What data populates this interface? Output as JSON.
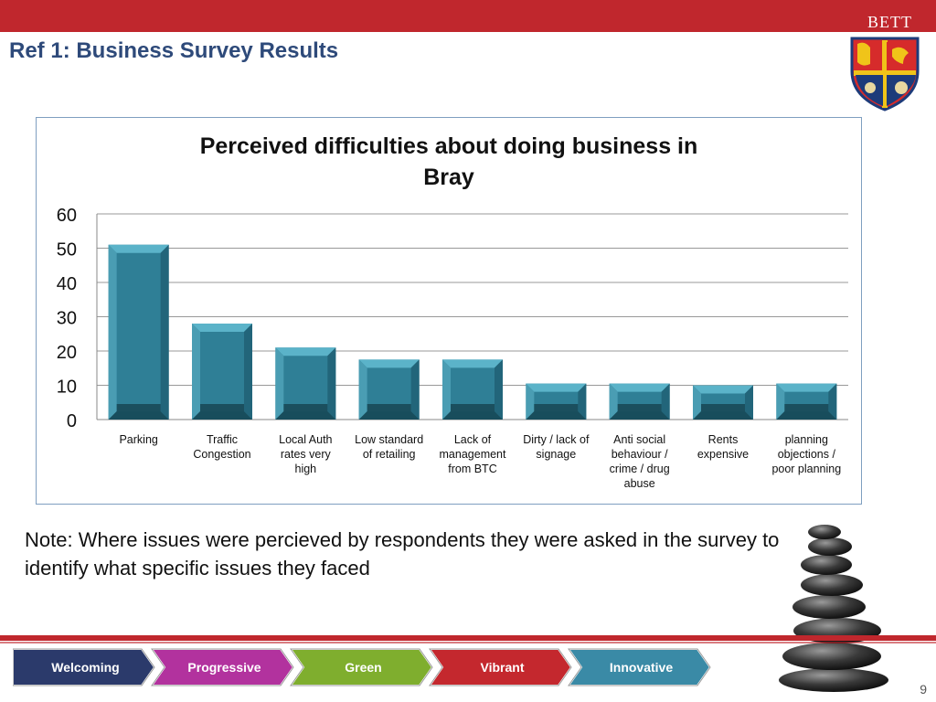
{
  "header": {
    "brand": "BETT",
    "title": "Ref 1: Business Survey Results"
  },
  "chart_data": {
    "type": "bar",
    "title": "Perceived difficulties about doing business in Bray",
    "title_lines": [
      "Perceived difficulties about doing business in",
      "Bray"
    ],
    "categories": [
      [
        "Parking"
      ],
      [
        "Traffic",
        "Congestion"
      ],
      [
        "Local Auth",
        "rates very",
        "high"
      ],
      [
        "Low standard",
        "of retailing"
      ],
      [
        "Lack of",
        "management",
        "from BTC"
      ],
      [
        "Dirty / lack of",
        "signage"
      ],
      [
        "Anti social",
        "behaviour /",
        "crime / drug",
        "abuse"
      ],
      [
        "Rents",
        "expensive"
      ],
      [
        "planning",
        "objections /",
        "poor planning"
      ]
    ],
    "values": [
      51,
      28,
      21,
      17.5,
      17.5,
      10.5,
      10.5,
      10,
      10.5
    ],
    "ylim": [
      0,
      60
    ],
    "yticks": [
      "0",
      "10",
      "20",
      "30",
      "40",
      "50",
      "60"
    ],
    "grid": true,
    "xlabel": "",
    "ylabel": "",
    "bar_color": "#2f7f96"
  },
  "note": "Note: Where issues were percieved by respondents they were asked in the survey to identify what specific issues they faced",
  "nav": {
    "items": [
      {
        "label": "Welcoming",
        "color": "#2b3a6b"
      },
      {
        "label": "Progressive",
        "color": "#b2329e"
      },
      {
        "label": "Green",
        "color": "#7fae2e"
      },
      {
        "label": "Vibrant",
        "color": "#c4282e"
      },
      {
        "label": "Innovative",
        "color": "#3a8aa6"
      }
    ]
  },
  "page_number": "9"
}
